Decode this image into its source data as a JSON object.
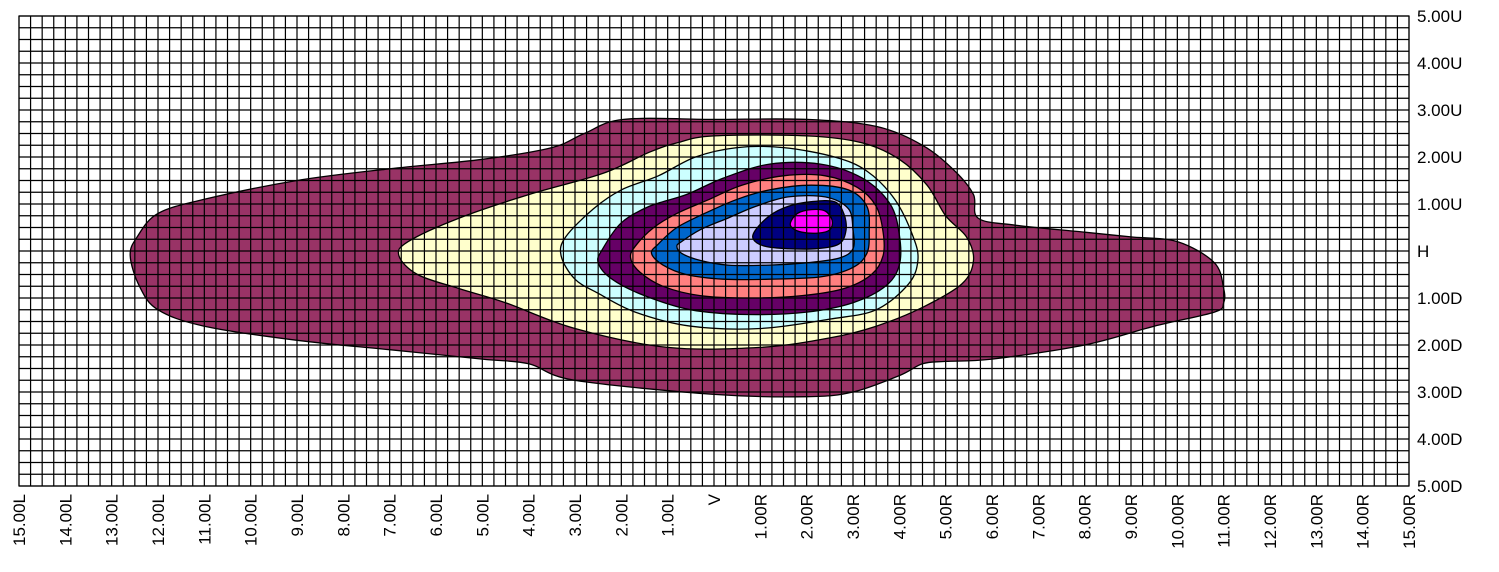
{
  "chart_data": {
    "type": "heatmap",
    "title": "",
    "xlabel": "",
    "ylabel": "",
    "x_units": "degrees",
    "y_units": "degrees",
    "xlim": [
      -15,
      15
    ],
    "ylim": [
      -5,
      5
    ],
    "grid": true,
    "grid_minor_step": 0.25,
    "legend": "none",
    "x_ticks": [
      {
        "value": -15,
        "label": "15.00L"
      },
      {
        "value": -14,
        "label": "14.00L"
      },
      {
        "value": -13,
        "label": "13.00L"
      },
      {
        "value": -12,
        "label": "12.00L"
      },
      {
        "value": -11,
        "label": "11.00L"
      },
      {
        "value": -10,
        "label": "10.00L"
      },
      {
        "value": -9,
        "label": "9.00L"
      },
      {
        "value": -8,
        "label": "8.00L"
      },
      {
        "value": -7,
        "label": "7.00L"
      },
      {
        "value": -6,
        "label": "6.00L"
      },
      {
        "value": -5,
        "label": "5.00L"
      },
      {
        "value": -4,
        "label": "4.00L"
      },
      {
        "value": -3,
        "label": "3.00L"
      },
      {
        "value": -2,
        "label": "2.00L"
      },
      {
        "value": -1,
        "label": "1.00L"
      },
      {
        "value": 0,
        "label": "V"
      },
      {
        "value": 1,
        "label": "1.00R"
      },
      {
        "value": 2,
        "label": "2.00R"
      },
      {
        "value": 3,
        "label": "3.00R"
      },
      {
        "value": 4,
        "label": "4.00R"
      },
      {
        "value": 5,
        "label": "5.00R"
      },
      {
        "value": 6,
        "label": "6.00R"
      },
      {
        "value": 7,
        "label": "7.00R"
      },
      {
        "value": 8,
        "label": "8.00R"
      },
      {
        "value": 9,
        "label": "9.00R"
      },
      {
        "value": 10,
        "label": "10.00R"
      },
      {
        "value": 11,
        "label": "11.00R"
      },
      {
        "value": 12,
        "label": "12.00R"
      },
      {
        "value": 13,
        "label": "13.00R"
      },
      {
        "value": 14,
        "label": "14.00R"
      },
      {
        "value": 15,
        "label": "15.00R"
      }
    ],
    "y_ticks": [
      {
        "value": 5,
        "label": "5.00U"
      },
      {
        "value": 4,
        "label": "4.00U"
      },
      {
        "value": 3,
        "label": "3.00U"
      },
      {
        "value": 2,
        "label": "2.00U"
      },
      {
        "value": 1,
        "label": "1.00U"
      },
      {
        "value": 0,
        "label": "H"
      },
      {
        "value": -1,
        "label": "1.00D"
      },
      {
        "value": -2,
        "label": "2.00D"
      },
      {
        "value": -3,
        "label": "3.00D"
      },
      {
        "value": -4,
        "label": "4.00D"
      },
      {
        "value": -5,
        "label": "5.00D"
      }
    ],
    "contour_levels": [
      {
        "level": 1,
        "color": "#993366",
        "points": [
          [
            -12.45,
            0.3
          ],
          [
            -12.0,
            0.8
          ],
          [
            -11.0,
            1.1
          ],
          [
            -9.0,
            1.5
          ],
          [
            -7.0,
            1.75
          ],
          [
            -5.0,
            1.95
          ],
          [
            -3.5,
            2.2
          ],
          [
            -2.8,
            2.5
          ],
          [
            -1.95,
            2.8
          ],
          [
            0.0,
            2.8
          ],
          [
            2.0,
            2.8
          ],
          [
            3.5,
            2.65
          ],
          [
            4.5,
            2.25
          ],
          [
            5.2,
            1.7
          ],
          [
            5.6,
            1.2
          ],
          [
            5.7,
            0.7
          ],
          [
            6.5,
            0.55
          ],
          [
            8.0,
            0.4
          ],
          [
            9.0,
            0.3
          ],
          [
            10.0,
            0.2
          ],
          [
            10.8,
            -0.25
          ],
          [
            11.0,
            -0.8
          ],
          [
            11.0,
            -1.1
          ],
          [
            10.8,
            -1.3
          ],
          [
            9.5,
            -1.6
          ],
          [
            8.0,
            -2.0
          ],
          [
            6.0,
            -2.3
          ],
          [
            5.0,
            -2.35
          ],
          [
            4.5,
            -2.4
          ],
          [
            4.0,
            -2.65
          ],
          [
            3.0,
            -3.0
          ],
          [
            2.0,
            -3.1
          ],
          [
            0.0,
            -3.05
          ],
          [
            -3.0,
            -2.75
          ],
          [
            -4.0,
            -2.4
          ],
          [
            -5.0,
            -2.3
          ],
          [
            -7.0,
            -2.1
          ],
          [
            -9.0,
            -1.9
          ],
          [
            -11.0,
            -1.6
          ],
          [
            -12.0,
            -1.25
          ],
          [
            -12.4,
            -0.75
          ],
          [
            -12.6,
            -0.1
          ]
        ]
      },
      {
        "level": 2,
        "color": "#ffffcc",
        "points": [
          [
            -6.6,
            0.2
          ],
          [
            -5.5,
            0.7
          ],
          [
            -4.0,
            1.2
          ],
          [
            -2.4,
            1.65
          ],
          [
            -1.4,
            2.1
          ],
          [
            -0.8,
            2.3
          ],
          [
            0.0,
            2.45
          ],
          [
            2.0,
            2.45
          ],
          [
            3.2,
            2.3
          ],
          [
            4.0,
            1.95
          ],
          [
            4.6,
            1.4
          ],
          [
            5.0,
            0.75
          ],
          [
            5.45,
            0.3
          ],
          [
            5.6,
            -0.2
          ],
          [
            5.35,
            -0.7
          ],
          [
            4.5,
            -1.2
          ],
          [
            3.5,
            -1.6
          ],
          [
            2.5,
            -1.85
          ],
          [
            1.0,
            -2.05
          ],
          [
            -1.0,
            -2.05
          ],
          [
            -3.0,
            -1.65
          ],
          [
            -4.5,
            -1.1
          ],
          [
            -5.5,
            -0.8
          ],
          [
            -6.4,
            -0.5
          ],
          [
            -6.8,
            -0.1
          ]
        ]
      },
      {
        "level": 3,
        "color": "#ccffff",
        "points": [
          [
            -3.2,
            0.3
          ],
          [
            -2.6,
            0.9
          ],
          [
            -2.0,
            1.3
          ],
          [
            -1.2,
            1.6
          ],
          [
            -0.4,
            2.0
          ],
          [
            0.5,
            2.2
          ],
          [
            1.5,
            2.2
          ],
          [
            2.6,
            2.0
          ],
          [
            3.3,
            1.7
          ],
          [
            3.9,
            1.1
          ],
          [
            4.3,
            0.3
          ],
          [
            4.4,
            -0.2
          ],
          [
            4.2,
            -0.7
          ],
          [
            3.5,
            -1.25
          ],
          [
            2.5,
            -1.45
          ],
          [
            1.0,
            -1.65
          ],
          [
            -0.5,
            -1.6
          ],
          [
            -1.7,
            -1.3
          ],
          [
            -2.5,
            -0.9
          ],
          [
            -3.0,
            -0.6
          ],
          [
            -3.3,
            -0.1
          ]
        ]
      },
      {
        "level": 4,
        "color": "#660066",
        "points": [
          [
            -2.4,
            0.05
          ],
          [
            -2.0,
            0.6
          ],
          [
            -1.4,
            0.95
          ],
          [
            -0.6,
            1.2
          ],
          [
            0.2,
            1.55
          ],
          [
            1.2,
            1.85
          ],
          [
            2.3,
            1.85
          ],
          [
            3.2,
            1.55
          ],
          [
            3.8,
            1.0
          ],
          [
            4.0,
            0.35
          ],
          [
            4.0,
            -0.3
          ],
          [
            3.7,
            -0.75
          ],
          [
            3.0,
            -1.1
          ],
          [
            2.0,
            -1.3
          ],
          [
            0.7,
            -1.35
          ],
          [
            -0.5,
            -1.25
          ],
          [
            -1.5,
            -0.95
          ],
          [
            -2.2,
            -0.6
          ],
          [
            -2.5,
            -0.25
          ]
        ]
      },
      {
        "level": 5,
        "color": "#ff8080",
        "points": [
          [
            -1.7,
            0.1
          ],
          [
            -1.3,
            0.5
          ],
          [
            -0.8,
            0.8
          ],
          [
            -0.1,
            1.1
          ],
          [
            0.6,
            1.4
          ],
          [
            1.5,
            1.6
          ],
          [
            2.4,
            1.6
          ],
          [
            3.1,
            1.35
          ],
          [
            3.5,
            0.95
          ],
          [
            3.65,
            0.4
          ],
          [
            3.65,
            -0.1
          ],
          [
            3.4,
            -0.5
          ],
          [
            2.8,
            -0.8
          ],
          [
            1.9,
            -0.95
          ],
          [
            0.8,
            -1.0
          ],
          [
            -0.3,
            -0.95
          ],
          [
            -1.1,
            -0.75
          ],
          [
            -1.6,
            -0.45
          ],
          [
            -1.8,
            -0.15
          ]
        ]
      },
      {
        "level": 6,
        "color": "#0066cc",
        "points": [
          [
            -1.2,
            0.15
          ],
          [
            -0.8,
            0.5
          ],
          [
            -0.2,
            0.8
          ],
          [
            0.5,
            1.1
          ],
          [
            1.2,
            1.3
          ],
          [
            2.1,
            1.4
          ],
          [
            2.9,
            1.3
          ],
          [
            3.3,
            0.95
          ],
          [
            3.35,
            0.4
          ],
          [
            3.3,
            -0.05
          ],
          [
            3.0,
            -0.35
          ],
          [
            2.3,
            -0.55
          ],
          [
            1.2,
            -0.6
          ],
          [
            0.2,
            -0.6
          ],
          [
            -0.6,
            -0.5
          ],
          [
            -1.1,
            -0.3
          ],
          [
            -1.35,
            -0.05
          ]
        ]
      },
      {
        "level": 7,
        "color": "#ccccff",
        "points": [
          [
            -0.7,
            0.2
          ],
          [
            -0.3,
            0.45
          ],
          [
            0.3,
            0.7
          ],
          [
            0.9,
            0.95
          ],
          [
            1.6,
            1.15
          ],
          [
            2.4,
            1.15
          ],
          [
            2.9,
            0.9
          ],
          [
            3.0,
            0.45
          ],
          [
            3.0,
            0.05
          ],
          [
            2.7,
            -0.15
          ],
          [
            2.0,
            -0.25
          ],
          [
            1.2,
            -0.3
          ],
          [
            0.3,
            -0.3
          ],
          [
            -0.3,
            -0.2
          ],
          [
            -0.7,
            -0.05
          ],
          [
            -0.8,
            0.1
          ]
        ]
      },
      {
        "level": 8,
        "color": "#000080",
        "points": [
          [
            0.9,
            0.45
          ],
          [
            1.2,
            0.75
          ],
          [
            1.6,
            0.95
          ],
          [
            2.1,
            1.05
          ],
          [
            2.6,
            1.05
          ],
          [
            2.8,
            0.8
          ],
          [
            2.85,
            0.45
          ],
          [
            2.7,
            0.15
          ],
          [
            2.2,
            0.05
          ],
          [
            1.6,
            0.05
          ],
          [
            1.1,
            0.1
          ],
          [
            0.85,
            0.25
          ]
        ]
      },
      {
        "level": 9,
        "color": "#ff00ff",
        "points": [
          [
            1.65,
            0.6
          ],
          [
            1.8,
            0.8
          ],
          [
            2.1,
            0.88
          ],
          [
            2.4,
            0.85
          ],
          [
            2.55,
            0.65
          ],
          [
            2.5,
            0.45
          ],
          [
            2.25,
            0.38
          ],
          [
            1.9,
            0.4
          ],
          [
            1.7,
            0.48
          ]
        ]
      }
    ]
  }
}
